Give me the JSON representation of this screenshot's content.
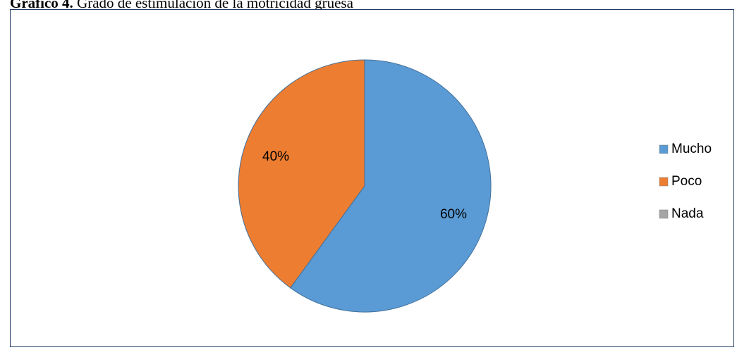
{
  "caption": {
    "prefix": "Gráfico 4.",
    "text": " Grado de estimulación de la motricidad gruesa"
  },
  "chart_data": {
    "type": "pie",
    "title": "",
    "start_angle_deg": 0,
    "direction": "clockwise",
    "slices": [
      {
        "label": "Mucho",
        "value": 60,
        "value_label": "60%",
        "color": "#5b9bd5"
      },
      {
        "label": "Poco",
        "value": 40,
        "value_label": "40%",
        "color": "#ed7d31"
      },
      {
        "label": "Nada",
        "value": 0,
        "value_label": "0%",
        "color": "#a5a5a5"
      }
    ],
    "legend_position": "right",
    "show_zero_labels": false
  }
}
